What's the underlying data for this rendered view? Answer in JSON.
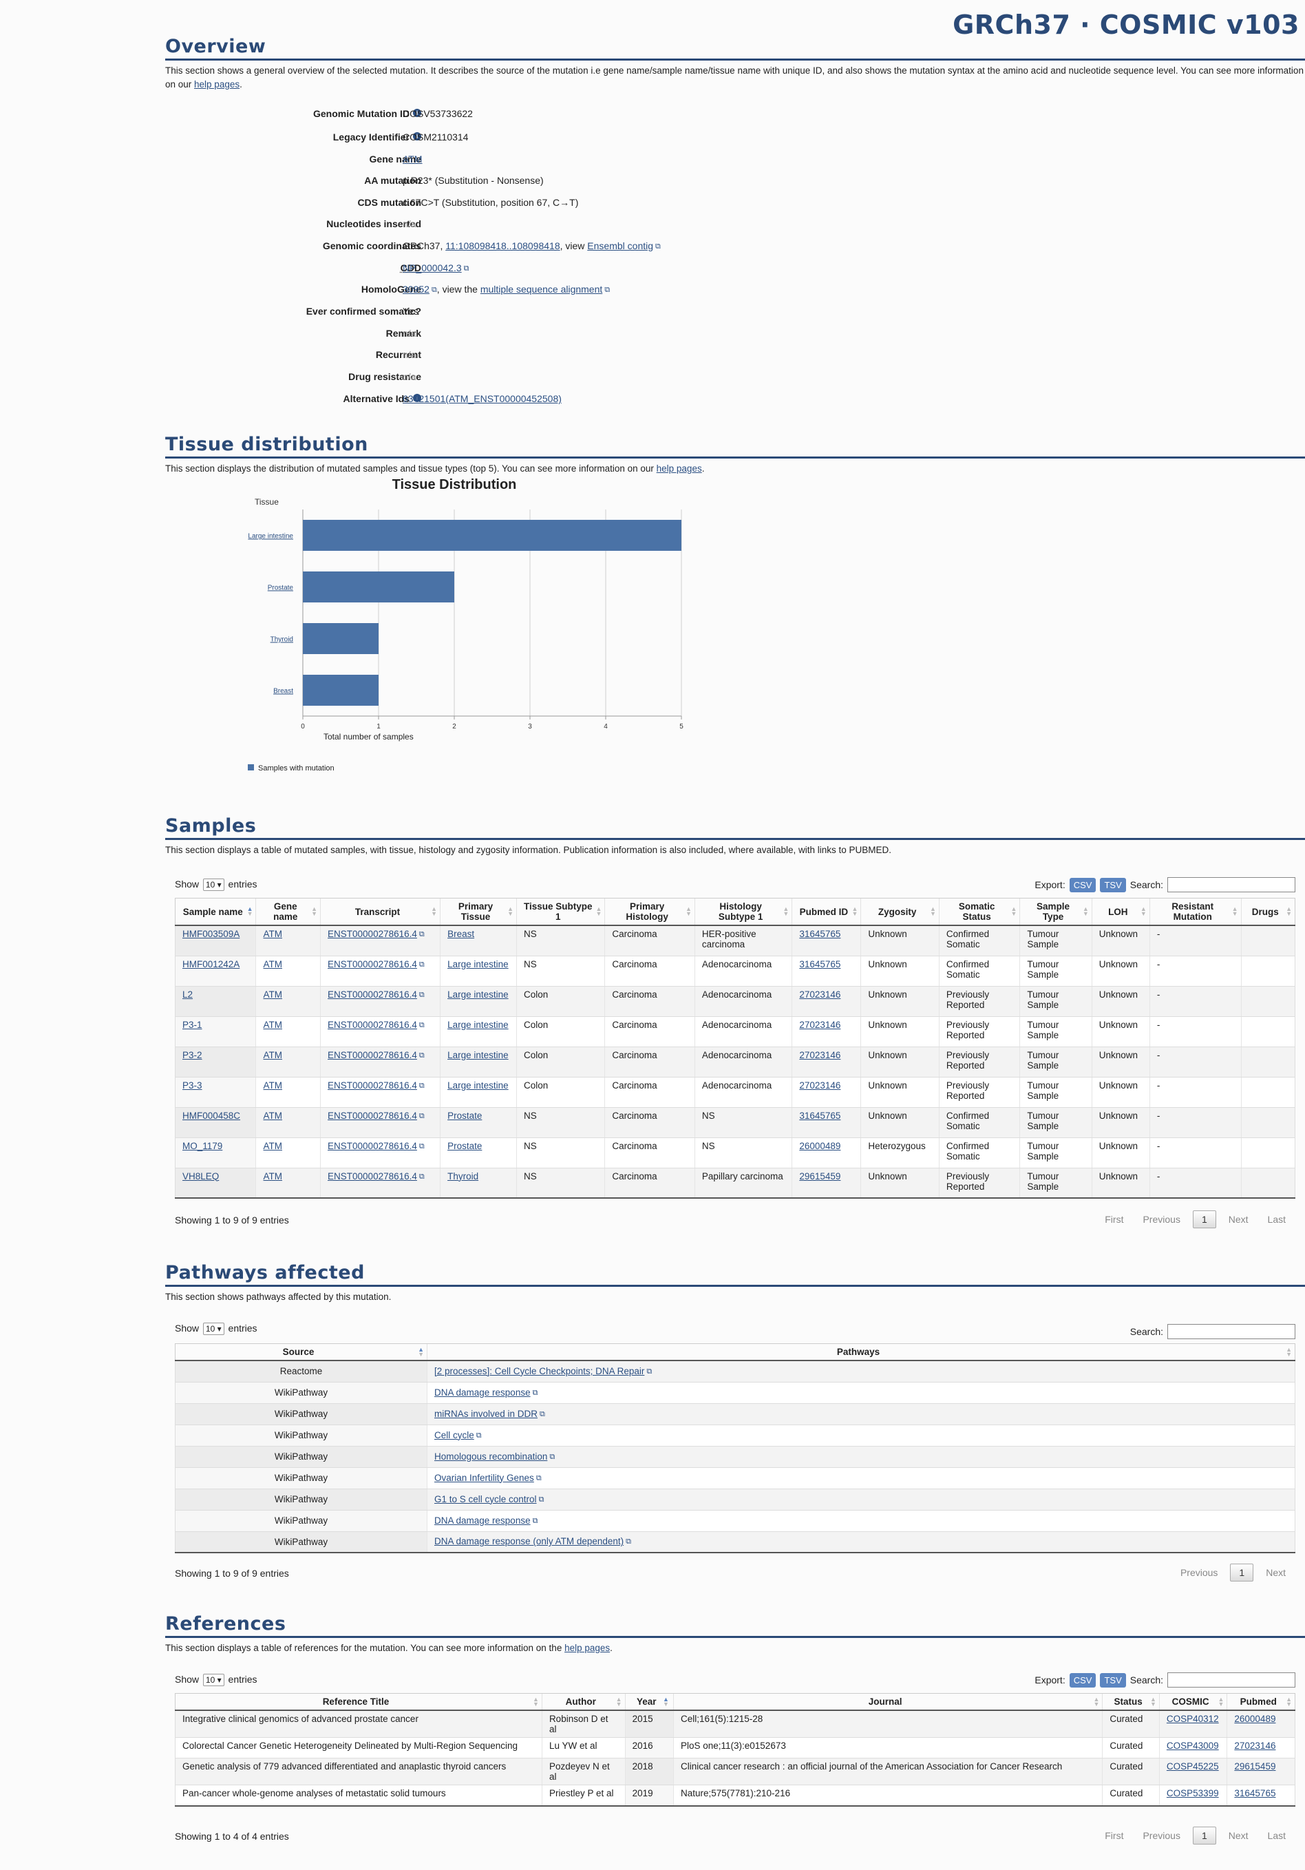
{
  "header": {
    "title": "GRCh37 · COSMIC v103"
  },
  "overview": {
    "title": "Overview",
    "desc_pre": "This section shows a general overview of the selected mutation. It describes the source of the mutation i.e gene name/sample name/tissue name with unique ID, and also shows the mutation syntax at the amino acid and nucleotide sequence level. You can see more information on our ",
    "desc_link": "help pages",
    "desc_post": ".",
    "genomic_mutation_id_label": "Genomic Mutation ID",
    "genomic_mutation_id": "COSV53733622",
    "legacy_label": "Legacy Identifier",
    "legacy": "COSM2110314",
    "gene_label": "Gene name",
    "gene": "ATM",
    "aa_label": "AA mutation",
    "aa": "p.R23* (Substitution - Nonsense)",
    "cds_label": "CDS mutation",
    "cds": "c.67C>T (Substitution, position 67, C→T)",
    "nuc_label": "Nucleotides inserted",
    "nuc": "n/a",
    "coords_label": "Genomic coordinates",
    "coords_pre": "GRCh37, ",
    "coords_link": "11:108098418..108098418",
    "coords_mid": ", view ",
    "coords_link2": "Ensembl contig",
    "cdd_label": "CDD",
    "cdd": "NP_000042.3",
    "homolo_label": "HomoloGene",
    "homolo": "30952",
    "homolo_mid": ", view the ",
    "homolo_link2": "multiple sequence alignment",
    "confirmed_label": "Ever confirmed somatic?",
    "confirmed": "Yes",
    "remark_label": "Remark",
    "remark": "n/a",
    "recurrent_label": "Recurrent",
    "recurrent": "n/a",
    "drug_label": "Drug resistance",
    "drug": "n/a",
    "alt_label": "Alternative Ids",
    "alt": "63421501(ATM_ENST00000452508)"
  },
  "tissue": {
    "title": "Tissue distribution",
    "desc_pre": "This section displays the distribution of mutated samples and tissue types (top 5). You can see more information on our ",
    "desc_link": "help pages",
    "desc_post": "."
  },
  "chart_data": {
    "type": "bar",
    "orientation": "horizontal",
    "title": "Tissue Distribution",
    "ylabel": "Tissue",
    "xlabel": "Total number of samples",
    "categories": [
      "Large intestine",
      "Prostate",
      "Thyroid",
      "Breast"
    ],
    "values": [
      5,
      2,
      1,
      1
    ],
    "xlim": [
      0,
      5
    ],
    "xticks": [
      "0",
      "1",
      "2",
      "3",
      "4",
      "5"
    ],
    "grid": true,
    "legend": "bottom-left",
    "series": [
      {
        "name": "Samples with mutation",
        "values": [
          5,
          2,
          1,
          1
        ],
        "color": "#4a72a6"
      }
    ]
  },
  "samples": {
    "title": "Samples",
    "desc": "This section displays a table of mutated samples, with tissue, histology and zygosity information. Publication information is also included, where available, with links to PUBMED.",
    "show": "Show",
    "show_value": "10",
    "entries": "entries",
    "export": "Export:",
    "csv": "CSV",
    "tsv": "TSV",
    "search": "Search:",
    "columns": [
      "Sample name",
      "Gene name",
      "Transcript",
      "Primary Tissue",
      "Tissue Subtype 1",
      "Primary Histology",
      "Histology Subtype 1",
      "Pubmed ID",
      "Zygosity",
      "Somatic Status",
      "Sample Type",
      "LOH",
      "Resistant Mutation",
      "Drugs"
    ],
    "rows": [
      [
        "HMF003509A",
        "ATM",
        "ENST00000278616.4",
        "Breast",
        "NS",
        "Carcinoma",
        "HER-positive carcinoma",
        "31645765",
        "Unknown",
        "Confirmed Somatic",
        "Tumour Sample",
        "Unknown",
        "-",
        ""
      ],
      [
        "HMF001242A",
        "ATM",
        "ENST00000278616.4",
        "Large intestine",
        "NS",
        "Carcinoma",
        "Adenocarcinoma",
        "31645765",
        "Unknown",
        "Confirmed Somatic",
        "Tumour Sample",
        "Unknown",
        "-",
        ""
      ],
      [
        "L2",
        "ATM",
        "ENST00000278616.4",
        "Large intestine",
        "Colon",
        "Carcinoma",
        "Adenocarcinoma",
        "27023146",
        "Unknown",
        "Previously Reported",
        "Tumour Sample",
        "Unknown",
        "-",
        ""
      ],
      [
        "P3-1",
        "ATM",
        "ENST00000278616.4",
        "Large intestine",
        "Colon",
        "Carcinoma",
        "Adenocarcinoma",
        "27023146",
        "Unknown",
        "Previously Reported",
        "Tumour Sample",
        "Unknown",
        "-",
        ""
      ],
      [
        "P3-2",
        "ATM",
        "ENST00000278616.4",
        "Large intestine",
        "Colon",
        "Carcinoma",
        "Adenocarcinoma",
        "27023146",
        "Unknown",
        "Previously Reported",
        "Tumour Sample",
        "Unknown",
        "-",
        ""
      ],
      [
        "P3-3",
        "ATM",
        "ENST00000278616.4",
        "Large intestine",
        "Colon",
        "Carcinoma",
        "Adenocarcinoma",
        "27023146",
        "Unknown",
        "Previously Reported",
        "Tumour Sample",
        "Unknown",
        "-",
        ""
      ],
      [
        "HMF000458C",
        "ATM",
        "ENST00000278616.4",
        "Prostate",
        "NS",
        "Carcinoma",
        "NS",
        "31645765",
        "Unknown",
        "Confirmed Somatic",
        "Tumour Sample",
        "Unknown",
        "-",
        ""
      ],
      [
        "MO_1179",
        "ATM",
        "ENST00000278616.4",
        "Prostate",
        "NS",
        "Carcinoma",
        "NS",
        "26000489",
        "Heterozygous",
        "Confirmed Somatic",
        "Tumour Sample",
        "Unknown",
        "-",
        ""
      ],
      [
        "VH8LEQ",
        "ATM",
        "ENST00000278616.4",
        "Thyroid",
        "NS",
        "Carcinoma",
        "Papillary carcinoma",
        "29615459",
        "Unknown",
        "Previously Reported",
        "Tumour Sample",
        "Unknown",
        "-",
        ""
      ]
    ],
    "info": "Showing 1 to 9 of 9 entries",
    "pager": [
      "First",
      "Previous",
      "1",
      "Next",
      "Last"
    ]
  },
  "pathways": {
    "title": "Pathways affected",
    "desc": "This section shows pathways affected by this mutation.",
    "show": "Show",
    "show_value": "10",
    "entries": "entries",
    "search": "Search:",
    "columns": [
      "Source",
      "Pathways"
    ],
    "rows": [
      [
        "Reactome",
        "[2 processes]: Cell Cycle Checkpoints; DNA Repair"
      ],
      [
        "WikiPathway",
        "DNA damage response"
      ],
      [
        "WikiPathway",
        "miRNAs involved in DDR"
      ],
      [
        "WikiPathway",
        "Cell cycle"
      ],
      [
        "WikiPathway",
        "Homologous recombination"
      ],
      [
        "WikiPathway",
        "Ovarian Infertility Genes"
      ],
      [
        "WikiPathway",
        "G1 to S cell cycle control"
      ],
      [
        "WikiPathway",
        "DNA damage response"
      ],
      [
        "WikiPathway",
        "DNA damage response (only ATM dependent)"
      ]
    ],
    "info": "Showing 1 to 9 of 9 entries",
    "pager": [
      "Previous",
      "1",
      "Next"
    ]
  },
  "references": {
    "title": "References",
    "desc_pre": "This section displays a table of references for the mutation. You can see more information on the ",
    "desc_link": "help pages",
    "desc_post": ".",
    "show": "Show",
    "show_value": "10",
    "entries": "entries",
    "export": "Export:",
    "csv": "CSV",
    "tsv": "TSV",
    "search": "Search:",
    "columns": [
      "Reference Title",
      "Author",
      "Year",
      "Journal",
      "Status",
      "COSMIC",
      "Pubmed"
    ],
    "rows": [
      [
        "Integrative clinical genomics of advanced prostate cancer",
        "Robinson D et al",
        "2015",
        "Cell;161(5):1215-28",
        "Curated",
        "COSP40312",
        "26000489"
      ],
      [
        "Colorectal Cancer Genetic Heterogeneity Delineated by Multi-Region Sequencing",
        "Lu YW et al",
        "2016",
        "PloS one;11(3):e0152673",
        "Curated",
        "COSP43009",
        "27023146"
      ],
      [
        "Genetic analysis of 779 advanced differentiated and anaplastic thyroid cancers",
        "Pozdeyev N et al",
        "2018",
        "Clinical cancer research : an official journal of the American Association for Cancer Research",
        "Curated",
        "COSP45225",
        "29615459"
      ],
      [
        "Pan-cancer whole-genome analyses of metastatic solid tumours",
        "Priestley P et al",
        "2019",
        "Nature;575(7781):210-216",
        "Curated",
        "COSP53399",
        "31645765"
      ]
    ],
    "info": "Showing 1 to 4 of 4 entries",
    "pager": [
      "First",
      "Previous",
      "1",
      "Next",
      "Last"
    ]
  }
}
